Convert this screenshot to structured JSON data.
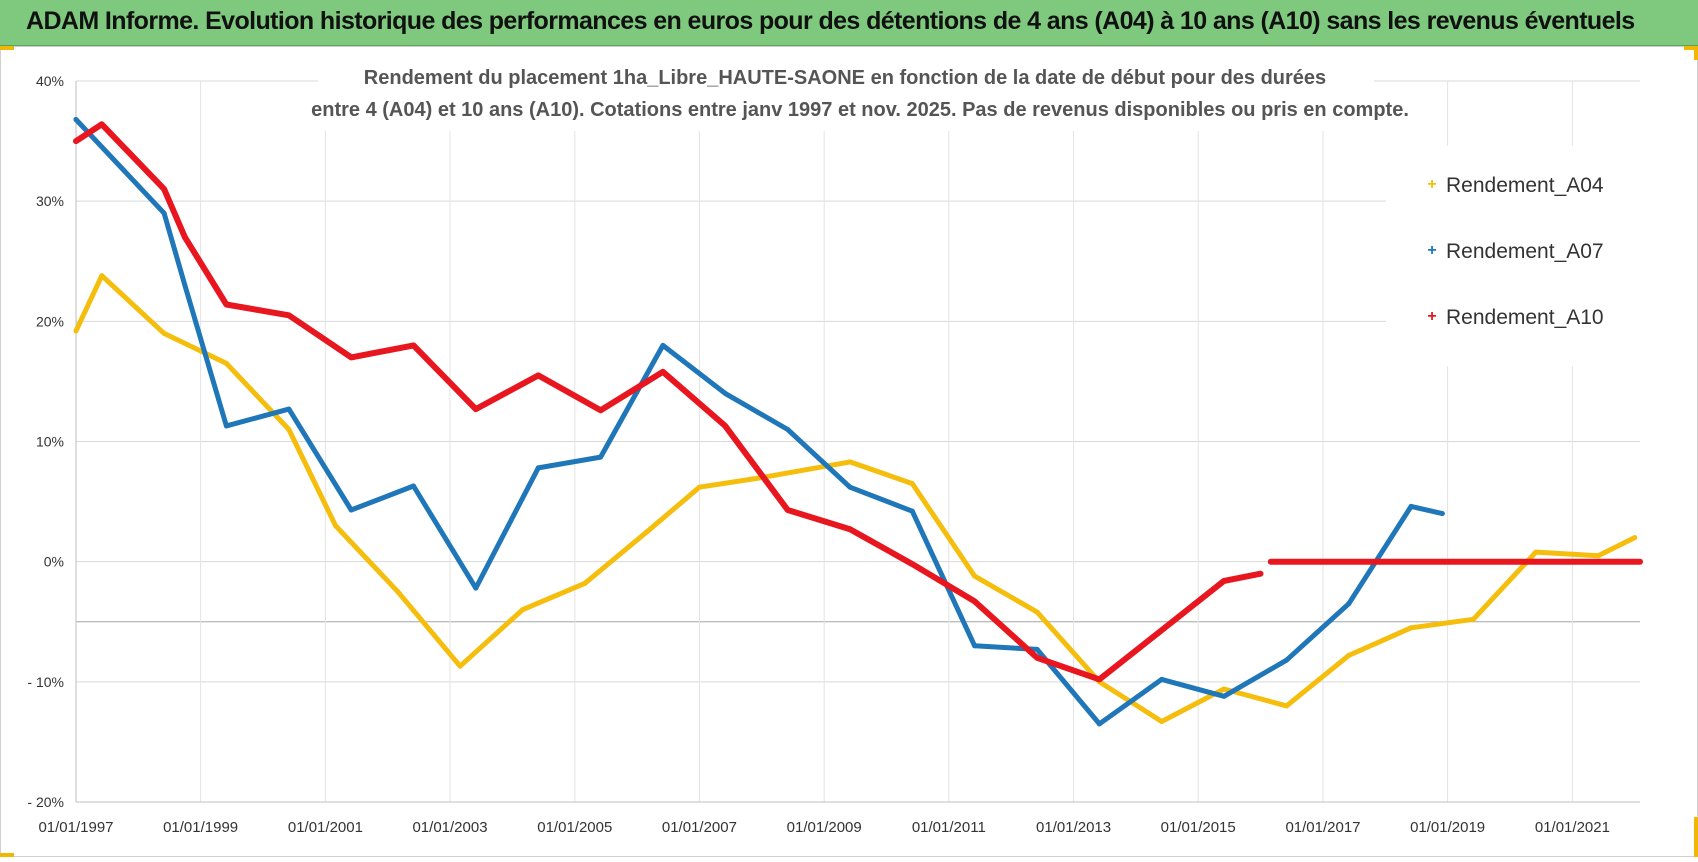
{
  "banner": {
    "title": "ADAM Informe. Evolution historique des performances en euros pour des détentions de 4 ans (A04) à 10 ans (A10) sans les revenus éventuels"
  },
  "colors": {
    "banner_bg": "#7fc97f",
    "accent_corners": "#f2b705",
    "A04": "#f5bd0c",
    "A07": "#1f77b9",
    "A10": "#e8161e"
  },
  "chart_data": {
    "type": "line",
    "title": "Rendement du placement 1ha_Libre_HAUTE-SAONE en fonction de la date de début pour des durées",
    "subtitle": "entre 4 (A04) et 10 ans (A10).  Cotations entre janv 1997 et nov. 2025. Pas de revenus disponibles ou pris en compte.",
    "xlabel": "",
    "ylabel": "",
    "x_range": [
      "1997-01-01",
      "2022-02-01"
    ],
    "xticks": [
      "01/01/1997",
      "01/01/1999",
      "01/01/2001",
      "01/01/2003",
      "01/01/2005",
      "01/01/2007",
      "01/01/2009",
      "01/01/2011",
      "01/01/2013",
      "01/01/2015",
      "01/01/2017",
      "01/01/2019",
      "01/01/2021"
    ],
    "ylim": [
      -20,
      40
    ],
    "yticks": [
      "40%",
      "30%",
      "20%",
      "10%",
      "0%",
      "- 10%",
      "- 20%"
    ],
    "grid": true,
    "legend_position": "top-right",
    "series": [
      {
        "name": "Rendement_A04",
        "points": [
          [
            "1997-01-01",
            19.2
          ],
          [
            "1997-06-01",
            23.8
          ],
          [
            "1998-06-01",
            19.0
          ],
          [
            "1999-06-01",
            16.5
          ],
          [
            "2000-06-01",
            11.0
          ],
          [
            "2001-03-01",
            3.0
          ],
          [
            "2002-03-01",
            -2.5
          ],
          [
            "2003-03-01",
            -8.7
          ],
          [
            "2004-03-01",
            -4.0
          ],
          [
            "2005-03-01",
            -1.8
          ],
          [
            "2006-03-01",
            2.5
          ],
          [
            "2007-01-01",
            6.2
          ],
          [
            "2008-01-01",
            7.0
          ],
          [
            "2009-06-01",
            8.3
          ],
          [
            "2010-06-01",
            6.5
          ],
          [
            "2011-06-01",
            -1.2
          ],
          [
            "2012-06-01",
            -4.2
          ],
          [
            "2013-06-01",
            -10.0
          ],
          [
            "2014-06-01",
            -13.3
          ],
          [
            "2015-06-01",
            -10.6
          ],
          [
            "2016-06-01",
            -12.0
          ],
          [
            "2017-06-01",
            -7.8
          ],
          [
            "2018-06-01",
            -5.5
          ],
          [
            "2019-06-01",
            -4.8
          ],
          [
            "2020-06-01",
            0.8
          ],
          [
            "2021-06-01",
            0.5
          ],
          [
            "2022-01-01",
            2.0
          ]
        ]
      },
      {
        "name": "Rendement_A07",
        "points": [
          [
            "1997-01-01",
            36.8
          ],
          [
            "1998-06-01",
            29.0
          ],
          [
            "1998-10-01",
            23.0
          ],
          [
            "1999-06-01",
            11.3
          ],
          [
            "2000-06-01",
            12.7
          ],
          [
            "2001-06-01",
            4.3
          ],
          [
            "2002-06-01",
            6.3
          ],
          [
            "2003-06-01",
            -2.2
          ],
          [
            "2004-06-01",
            7.8
          ],
          [
            "2005-06-01",
            8.7
          ],
          [
            "2006-06-01",
            18.0
          ],
          [
            "2007-06-01",
            14.0
          ],
          [
            "2008-06-01",
            11.0
          ],
          [
            "2009-06-01",
            6.2
          ],
          [
            "2010-06-01",
            4.2
          ],
          [
            "2011-06-01",
            -7.0
          ],
          [
            "2012-06-01",
            -7.3
          ],
          [
            "2013-06-01",
            -13.5
          ],
          [
            "2014-06-01",
            -9.8
          ],
          [
            "2015-06-01",
            -11.2
          ],
          [
            "2016-06-01",
            -8.2
          ],
          [
            "2017-06-01",
            -3.5
          ],
          [
            "2018-06-01",
            4.6
          ],
          [
            "2018-12-01",
            4.0
          ]
        ]
      },
      {
        "name": "Rendement_A10",
        "points": [
          [
            "1997-01-01",
            35.0
          ],
          [
            "1997-06-01",
            36.4
          ],
          [
            "1998-06-01",
            31.0
          ],
          [
            "1998-10-01",
            27.0
          ],
          [
            "1999-06-01",
            21.4
          ],
          [
            "2000-06-01",
            20.5
          ],
          [
            "2001-06-01",
            17.0
          ],
          [
            "2002-06-01",
            18.0
          ],
          [
            "2003-06-01",
            12.7
          ],
          [
            "2004-06-01",
            15.5
          ],
          [
            "2005-06-01",
            12.6
          ],
          [
            "2006-06-01",
            15.8
          ],
          [
            "2007-06-01",
            11.3
          ],
          [
            "2008-06-01",
            4.3
          ],
          [
            "2009-06-01",
            2.7
          ],
          [
            "2010-06-01",
            -0.2
          ],
          [
            "2011-06-01",
            -3.3
          ],
          [
            "2012-06-01",
            -8.0
          ],
          [
            "2013-06-01",
            -9.8
          ],
          [
            "2014-06-01",
            -5.7
          ],
          [
            "2015-06-01",
            -1.6
          ],
          [
            "2016-01-01",
            -1.0
          ],
          [
            "2016-03-01",
            0.0
          ],
          [
            "2022-02-01",
            0.0
          ]
        ]
      }
    ]
  }
}
